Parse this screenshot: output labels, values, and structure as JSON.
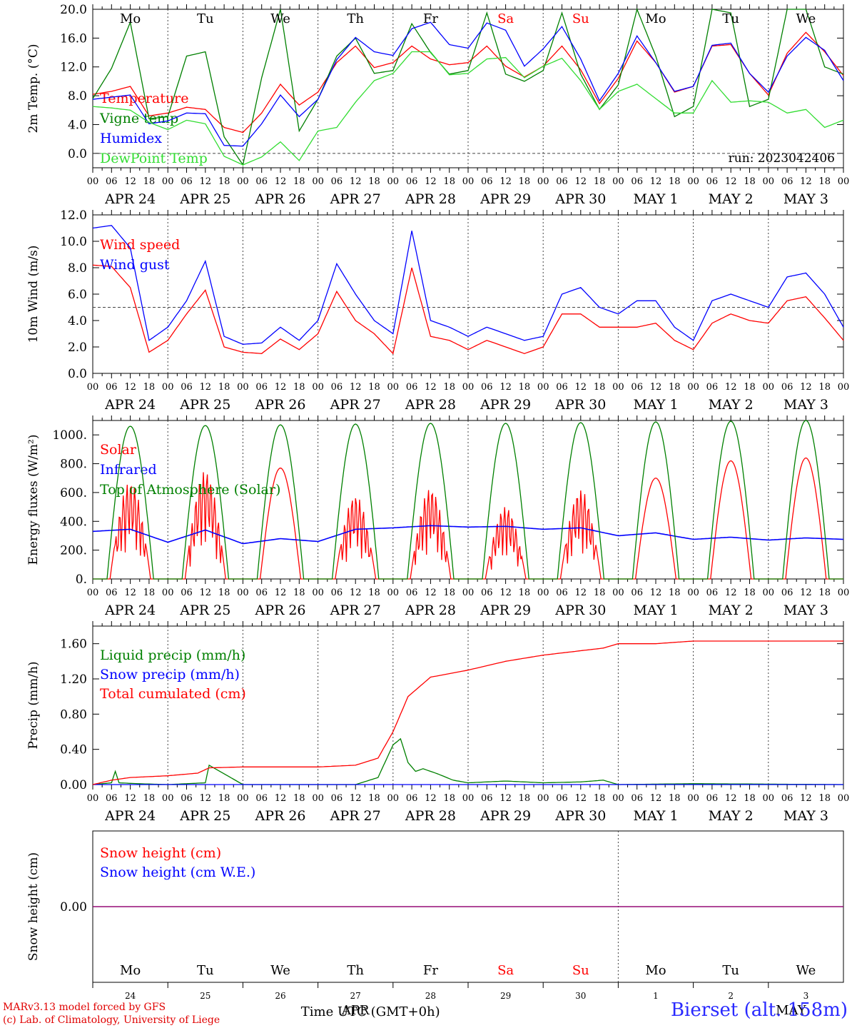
{
  "footer": {
    "model": "MARv3.13 model forced by GFS",
    "lab": "(c) Lab. of Climatology, University of Liege",
    "time_label": "Time UTC (GMT+0h)",
    "month_bottom_1": "APR",
    "month_bottom_2": "MAY",
    "station": "Bierset (alt. 158m)"
  },
  "colors": {
    "red": "#ff0000",
    "green": "#008000",
    "blue": "#0000ff",
    "light_green": "#33dd33",
    "purple": "#800080"
  },
  "axis": {
    "hour_ticks": [
      "00",
      "06",
      "12",
      "18"
    ],
    "dates": [
      "APR 24",
      "APR 25",
      "APR 26",
      "APR 27",
      "APR 28",
      "APR 29",
      "APR 30",
      "MAY  1",
      "MAY  2",
      "MAY  3"
    ],
    "weekdays": [
      "Mo",
      "Tu",
      "We",
      "Th",
      "Fr",
      "Sa",
      "Su",
      "Mo",
      "Tu",
      "We"
    ],
    "weekday_colors": [
      "#000000",
      "#000000",
      "#000000",
      "#000000",
      "#000000",
      "#ff0000",
      "#ff0000",
      "#000000",
      "#000000",
      "#000000"
    ],
    "day_numbers": [
      "24",
      "25",
      "26",
      "27",
      "28",
      "29",
      "30",
      "1",
      "2",
      "3"
    ]
  },
  "chart_data": [
    {
      "type": "line",
      "ylabel": "2m Temp. (°C)",
      "ylim": [
        -2,
        20
      ],
      "yticks": [
        "20.0",
        "16.0",
        "12.0",
        "8.0",
        "4.0",
        "0.0"
      ],
      "ytick_values": [
        20,
        16,
        12,
        8,
        4,
        0
      ],
      "reference_line": 0,
      "annotation": "run: 2023042406",
      "x_unit": "days from APR 24 00 UTC",
      "series": [
        {
          "name": "Temperature",
          "color": "#ff0000",
          "x": [
            0,
            0.25,
            0.5,
            0.75,
            1,
            1.25,
            1.5,
            1.75,
            2,
            2.25,
            2.5,
            2.75,
            3,
            3.25,
            3.5,
            3.75,
            4,
            4.25,
            4.5,
            4.75,
            5,
            5.25,
            5.5,
            5.75,
            6,
            6.25,
            6.5,
            6.75,
            7,
            7.25,
            7.5,
            7.75,
            8,
            8.25,
            8.5,
            8.75,
            9,
            9.25,
            9.5,
            9.75,
            10
          ],
          "values": [
            8.2,
            8.6,
            9.3,
            5.2,
            5.6,
            6.4,
            6.1,
            3.6,
            2.9,
            5.6,
            9.6,
            6.7,
            8.5,
            12.6,
            14.9,
            11.9,
            12.6,
            14.9,
            13.1,
            12.3,
            12.6,
            14.9,
            12.1,
            10.6,
            12.1,
            14.9,
            11.6,
            6.9,
            10.4,
            15.6,
            12.6,
            8.5,
            9.3,
            14.9,
            15.1,
            11.1,
            8.1,
            13.9,
            16.8,
            14.1,
            10.8
          ]
        },
        {
          "name": "Vigne temp",
          "color": "#008000",
          "x": [
            0,
            0.25,
            0.5,
            0.75,
            1,
            1.25,
            1.5,
            1.75,
            2,
            2.25,
            2.5,
            2.75,
            3,
            3.25,
            3.5,
            3.75,
            4,
            4.25,
            4.5,
            4.75,
            5,
            5.25,
            5.5,
            5.75,
            6,
            6.25,
            6.5,
            6.75,
            7,
            7.25,
            7.5,
            7.75,
            8,
            8.25,
            8.5,
            8.75,
            9,
            9.25,
            9.5,
            9.75,
            10
          ],
          "values": [
            7.6,
            11.8,
            18.2,
            4.8,
            5.1,
            13.5,
            14.1,
            2.3,
            -1.6,
            10.5,
            20.0,
            3.1,
            7.5,
            13.5,
            16.0,
            11.1,
            11.5,
            18.0,
            14.0,
            11.0,
            11.5,
            19.5,
            11.0,
            10.0,
            11.5,
            19.5,
            11.0,
            6.1,
            9.5,
            20.0,
            13.5,
            5.1,
            6.5,
            20.0,
            19.5,
            6.5,
            7.5,
            20.0,
            20.0,
            12.0,
            11.0
          ]
        },
        {
          "name": "Humidex",
          "color": "#0000ff",
          "x": [
            0,
            0.25,
            0.5,
            0.75,
            1,
            1.25,
            1.5,
            1.75,
            2,
            2.25,
            2.5,
            2.75,
            3,
            3.25,
            3.5,
            3.75,
            4,
            4.25,
            4.5,
            4.75,
            5,
            5.25,
            5.5,
            5.75,
            6,
            6.25,
            6.5,
            6.75,
            7,
            7.25,
            7.5,
            7.75,
            8,
            8.25,
            8.5,
            8.75,
            9,
            9.25,
            9.5,
            9.75,
            10
          ],
          "values": [
            7.5,
            7.8,
            8.1,
            4.1,
            4.5,
            5.6,
            5.5,
            1.1,
            1.0,
            4.1,
            8.1,
            5.1,
            7.5,
            13.0,
            16.1,
            14.1,
            13.6,
            17.3,
            18.2,
            15.1,
            14.6,
            18.1,
            17.1,
            12.1,
            14.5,
            17.6,
            13.1,
            7.3,
            11.1,
            16.3,
            12.6,
            8.6,
            9.3,
            15.0,
            15.3,
            11.1,
            8.5,
            13.5,
            16.1,
            14.3,
            10.1
          ]
        },
        {
          "name": "DewPoint Temp",
          "color": "#33dd33",
          "x": [
            0,
            0.25,
            0.5,
            0.75,
            1,
            1.25,
            1.5,
            1.75,
            2,
            2.25,
            2.5,
            2.75,
            3,
            3.25,
            3.5,
            3.75,
            4,
            4.25,
            4.5,
            4.75,
            5,
            5.25,
            5.5,
            5.75,
            6,
            6.25,
            6.5,
            6.75,
            7,
            7.25,
            7.5,
            7.75,
            8,
            8.25,
            8.5,
            8.75,
            9,
            9.25,
            9.5,
            9.75,
            10
          ],
          "values": [
            6.5,
            6.3,
            6.0,
            4.3,
            3.3,
            4.6,
            4.1,
            -0.4,
            -1.6,
            -0.5,
            1.6,
            -1.0,
            3.1,
            3.6,
            7.1,
            10.1,
            11.1,
            14.1,
            14.1,
            10.9,
            11.1,
            13.1,
            13.3,
            10.5,
            12.1,
            13.2,
            10.1,
            6.1,
            8.6,
            9.6,
            7.6,
            5.6,
            5.6,
            10.1,
            7.1,
            7.3,
            7.1,
            5.6,
            6.1,
            3.6,
            4.6
          ]
        }
      ]
    },
    {
      "type": "line",
      "ylabel": "10m Wind (m/s)",
      "ylim": [
        0,
        12
      ],
      "yticks": [
        "12.0",
        "10.0",
        "8.0",
        "6.0",
        "4.0",
        "2.0",
        "0.0"
      ],
      "ytick_values": [
        12,
        10,
        8,
        6,
        4,
        2,
        0
      ],
      "reference_line": 5,
      "x_unit": "days from APR 24 00 UTC",
      "series": [
        {
          "name": "Wind speed",
          "color": "#ff0000",
          "x": [
            0,
            0.25,
            0.5,
            0.75,
            1,
            1.25,
            1.5,
            1.75,
            2,
            2.25,
            2.5,
            2.75,
            3,
            3.25,
            3.5,
            3.75,
            4,
            4.25,
            4.5,
            4.75,
            5,
            5.25,
            5.5,
            5.75,
            6,
            6.25,
            6.5,
            6.75,
            7,
            7.25,
            7.5,
            7.75,
            8,
            8.25,
            8.5,
            8.75,
            9,
            9.25,
            9.5,
            9.75,
            10
          ],
          "values": [
            8.2,
            8.1,
            6.5,
            1.6,
            2.5,
            4.5,
            6.3,
            2.0,
            1.6,
            1.5,
            2.6,
            1.8,
            3.0,
            6.2,
            4.0,
            3.0,
            1.5,
            8.0,
            2.8,
            2.5,
            1.8,
            2.5,
            2.0,
            1.5,
            2.0,
            4.5,
            4.5,
            3.5,
            3.5,
            3.5,
            3.8,
            2.5,
            1.8,
            3.8,
            4.5,
            4.0,
            3.8,
            5.5,
            5.8,
            4.2,
            2.5
          ]
        },
        {
          "name": "Wind gust",
          "color": "#0000ff",
          "x": [
            0,
            0.25,
            0.5,
            0.75,
            1,
            1.25,
            1.5,
            1.75,
            2,
            2.25,
            2.5,
            2.75,
            3,
            3.25,
            3.5,
            3.75,
            4,
            4.25,
            4.5,
            4.75,
            5,
            5.25,
            5.5,
            5.75,
            6,
            6.25,
            6.5,
            6.75,
            7,
            7.25,
            7.5,
            7.75,
            8,
            8.25,
            8.5,
            8.75,
            9,
            9.25,
            9.5,
            9.75,
            10
          ],
          "values": [
            11.0,
            11.2,
            9.5,
            2.5,
            3.5,
            5.5,
            8.5,
            2.8,
            2.2,
            2.3,
            3.5,
            2.5,
            4.0,
            8.3,
            6.0,
            4.0,
            3.0,
            10.8,
            4.0,
            3.5,
            2.8,
            3.5,
            3.0,
            2.5,
            2.8,
            6.0,
            6.5,
            5.0,
            4.5,
            5.5,
            5.5,
            3.5,
            2.5,
            5.5,
            6.0,
            5.5,
            5.0,
            7.3,
            7.6,
            6.0,
            3.5
          ]
        }
      ]
    },
    {
      "type": "line",
      "ylabel": "Energy fluxes (W/m²)",
      "ylim": [
        0,
        1100
      ],
      "yticks": [
        "1000.",
        "800.",
        "600.",
        "400.",
        "200.",
        "0."
      ],
      "ytick_values": [
        1000,
        800,
        600,
        400,
        200,
        0
      ],
      "x_unit": "days from APR 24 00 UTC",
      "series": [
        {
          "name": "Solar",
          "color": "#ff0000",
          "daily_peaks": [
            680,
            750,
            770,
            580,
            630,
            500,
            620,
            700,
            820,
            840
          ]
        },
        {
          "name": "Infrared",
          "color": "#0000ff",
          "x": [
            0,
            0.5,
            1,
            1.5,
            2,
            2.5,
            3,
            3.5,
            4,
            4.5,
            5,
            5.5,
            6,
            6.5,
            7,
            7.5,
            8,
            8.5,
            9,
            9.5,
            10
          ],
          "values": [
            330,
            345,
            255,
            340,
            245,
            280,
            260,
            345,
            355,
            370,
            360,
            365,
            345,
            355,
            300,
            320,
            275,
            290,
            270,
            285,
            275
          ]
        },
        {
          "name": "Top of Atmosphere (Solar)",
          "color": "#008000",
          "daily_peaks": [
            1060,
            1065,
            1070,
            1075,
            1080,
            1080,
            1085,
            1090,
            1095,
            1100
          ]
        }
      ]
    },
    {
      "type": "line",
      "ylabel": "Precip (mm/h)",
      "ylim": [
        0,
        1.8
      ],
      "yticks": [
        "1.60",
        "1.20",
        "0.80",
        "0.40",
        "0.00"
      ],
      "ytick_values": [
        1.6,
        1.2,
        0.8,
        0.4,
        0
      ],
      "x_unit": "days from APR 24 00 UTC",
      "series": [
        {
          "name": "Liquid precip (mm/h)",
          "color": "#008000",
          "x": [
            0,
            0.25,
            0.3,
            0.35,
            0.6,
            1.0,
            1.5,
            1.55,
            2,
            3,
            3.5,
            3.8,
            4.0,
            4.1,
            4.2,
            4.3,
            4.4,
            4.6,
            4.8,
            5.0,
            5.5,
            6.0,
            6.5,
            6.8,
            7.0,
            8.0,
            10
          ],
          "values": [
            0,
            0.02,
            0.15,
            0.02,
            0.01,
            0,
            0.02,
            0.22,
            0,
            0,
            0,
            0.08,
            0.45,
            0.52,
            0.25,
            0.15,
            0.18,
            0.12,
            0.05,
            0.02,
            0.04,
            0.02,
            0.03,
            0.05,
            0,
            0.01,
            0
          ]
        },
        {
          "name": "Snow precip (mm/h)",
          "color": "#0000ff",
          "x": [
            0,
            10
          ],
          "values": [
            0,
            0
          ]
        },
        {
          "name": "Total cumulated (cm)",
          "color": "#ff0000",
          "x": [
            0,
            0.25,
            0.5,
            1,
            1.4,
            1.55,
            2,
            3,
            3.5,
            3.8,
            4.0,
            4.2,
            4.5,
            5,
            5.5,
            6,
            6.5,
            6.8,
            7,
            7.5,
            8,
            10
          ],
          "values": [
            0,
            0.05,
            0.08,
            0.1,
            0.13,
            0.19,
            0.2,
            0.2,
            0.22,
            0.3,
            0.6,
            1.0,
            1.22,
            1.3,
            1.4,
            1.47,
            1.52,
            1.55,
            1.6,
            1.6,
            1.63,
            1.63
          ]
        }
      ]
    },
    {
      "type": "line",
      "ylabel": "Snow height (cm)",
      "ylim": [
        -1,
        1
      ],
      "yticks": [
        "0.00"
      ],
      "ytick_values": [
        0
      ],
      "x_unit": "days from APR 24 00 UTC",
      "series": [
        {
          "name": "Snow height (cm)",
          "color": "#ff0000",
          "x": [
            0,
            10
          ],
          "values": [
            0,
            0
          ]
        },
        {
          "name": "Snow height (cm W.E.)",
          "color": "#0000ff",
          "x": [
            0,
            10
          ],
          "values": [
            0,
            0
          ]
        }
      ]
    }
  ]
}
